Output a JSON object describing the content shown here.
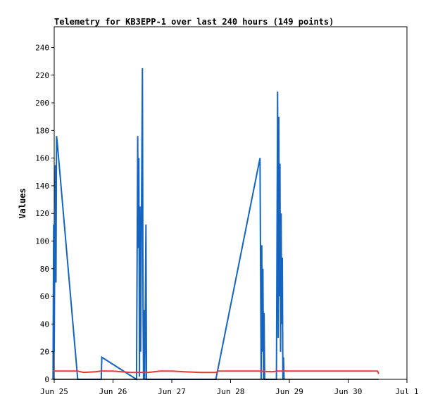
{
  "chart_data": {
    "type": "line",
    "title": "Telemetry for KB3EPP-1 over last 240 hours (149 points)",
    "xlabel": "",
    "ylabel": "Values",
    "xlim": [
      0,
      6.0
    ],
    "ylim": [
      0,
      255
    ],
    "x_ticks": [
      {
        "v": 0,
        "label": "Jun 25"
      },
      {
        "v": 1,
        "label": "Jun 26"
      },
      {
        "v": 2,
        "label": "Jun 27"
      },
      {
        "v": 3,
        "label": "Jun 28"
      },
      {
        "v": 4,
        "label": "Jun 29"
      },
      {
        "v": 5,
        "label": "Jun 30"
      },
      {
        "v": 6,
        "label": "Jul 1"
      }
    ],
    "y_ticks": [
      0,
      20,
      40,
      60,
      80,
      100,
      120,
      140,
      160,
      180,
      200,
      220,
      240
    ],
    "grid": false,
    "series": [
      {
        "color": "#1565c0",
        "points": [
          [
            -0.02,
            0
          ],
          [
            -0.01,
            112
          ],
          [
            0.0,
            20
          ],
          [
            0.01,
            100
          ],
          [
            0.02,
            155
          ],
          [
            0.03,
            70
          ],
          [
            0.04,
            176
          ],
          [
            0.05,
            172
          ],
          [
            0.4,
            0
          ],
          [
            0.8,
            0
          ],
          [
            0.81,
            16
          ],
          [
            1.4,
            0
          ],
          [
            1.42,
            176
          ],
          [
            1.43,
            95
          ],
          [
            1.44,
            160
          ],
          [
            1.45,
            2
          ],
          [
            1.46,
            125
          ],
          [
            1.47,
            20
          ],
          [
            1.48,
            90
          ],
          [
            1.5,
            225
          ],
          [
            1.51,
            55
          ],
          [
            1.52,
            0
          ],
          [
            1.53,
            50
          ],
          [
            1.54,
            0
          ],
          [
            1.56,
            112
          ],
          [
            1.57,
            0
          ],
          [
            2.75,
            0
          ],
          [
            3.5,
            160
          ],
          [
            3.52,
            0
          ],
          [
            3.53,
            97
          ],
          [
            3.54,
            20
          ],
          [
            3.55,
            80
          ],
          [
            3.56,
            0
          ],
          [
            3.57,
            48
          ],
          [
            3.58,
            0
          ],
          [
            3.78,
            0
          ],
          [
            3.8,
            208
          ],
          [
            3.81,
            30
          ],
          [
            3.82,
            190
          ],
          [
            3.83,
            60
          ],
          [
            3.84,
            156
          ],
          [
            3.85,
            20
          ],
          [
            3.86,
            120
          ],
          [
            3.87,
            40
          ],
          [
            3.88,
            88
          ],
          [
            3.89,
            0
          ],
          [
            3.9,
            16
          ],
          [
            3.91,
            0
          ]
        ]
      },
      {
        "color": "#e53935",
        "points": [
          [
            -0.02,
            6
          ],
          [
            0.4,
            6
          ],
          [
            0.5,
            5
          ],
          [
            0.7,
            5.5
          ],
          [
            0.8,
            6
          ],
          [
            1.0,
            6
          ],
          [
            1.3,
            5
          ],
          [
            1.6,
            5
          ],
          [
            1.8,
            6
          ],
          [
            2.0,
            6
          ],
          [
            2.2,
            5.5
          ],
          [
            2.5,
            5
          ],
          [
            2.75,
            5
          ],
          [
            2.8,
            6
          ],
          [
            3.5,
            6
          ],
          [
            3.7,
            5.5
          ],
          [
            3.8,
            6
          ],
          [
            5.5,
            6
          ],
          [
            5.52,
            4
          ]
        ]
      },
      {
        "color": "#000000",
        "points": [
          [
            -0.02,
            0
          ],
          [
            5.52,
            0
          ]
        ]
      }
    ]
  }
}
